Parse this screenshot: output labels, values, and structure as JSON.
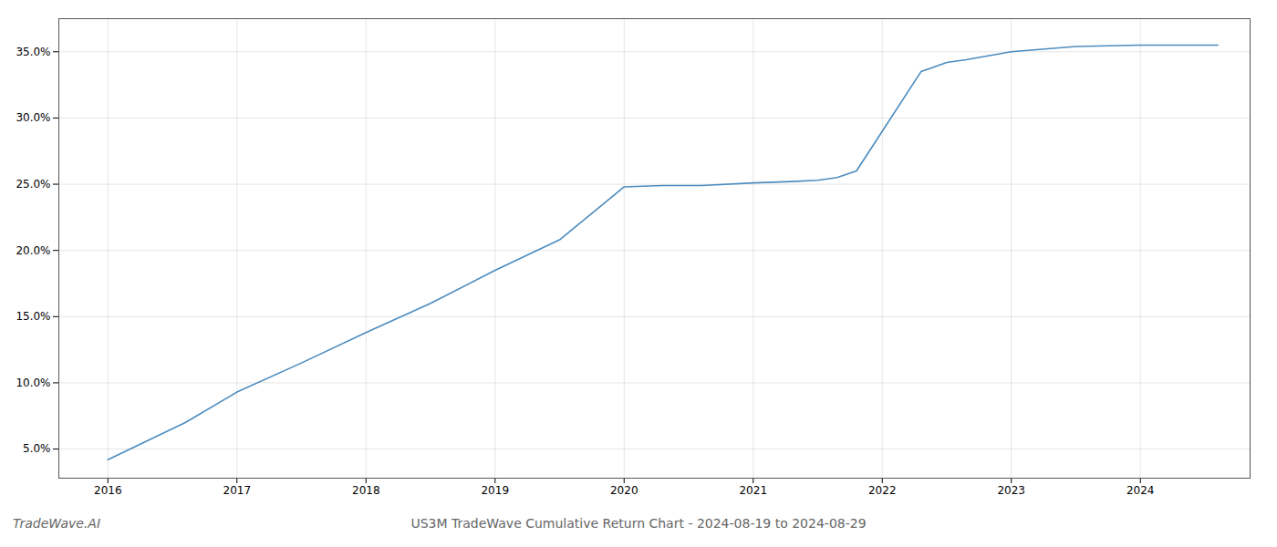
{
  "chart_data": {
    "type": "line",
    "title": "US3M TradeWave Cumulative Return Chart - 2024-08-19 to 2024-08-29",
    "annotations": [
      "TradeWave.AI"
    ],
    "x": [
      2016.0,
      2016.6,
      2017.0,
      2017.5,
      2018.0,
      2018.5,
      2019.0,
      2019.5,
      2019.9,
      2020.0,
      2020.3,
      2020.6,
      2021.0,
      2021.3,
      2021.5,
      2021.65,
      2021.8,
      2022.0,
      2022.3,
      2022.5,
      2022.65,
      2023.0,
      2023.5,
      2024.0,
      2024.6
    ],
    "values": [
      0.042,
      0.07,
      0.093,
      0.115,
      0.138,
      0.16,
      0.185,
      0.208,
      0.24,
      0.248,
      0.249,
      0.249,
      0.251,
      0.252,
      0.253,
      0.255,
      0.26,
      0.29,
      0.335,
      0.342,
      0.344,
      0.35,
      0.354,
      0.355,
      0.355
    ],
    "color": "#4c8cbf",
    "xlim": [
      2015.62,
      2024.85
    ],
    "xticks": [
      2016,
      2017,
      2018,
      2019,
      2020,
      2021,
      2022,
      2023,
      2024
    ],
    "ylim": [
      0.028,
      0.375
    ],
    "yticks": [
      {
        "value": 0.05,
        "label": "5.0%"
      },
      {
        "value": 0.1,
        "label": "10.0%"
      },
      {
        "value": 0.15,
        "label": "15.0%"
      },
      {
        "value": 0.2,
        "label": "20.0%"
      },
      {
        "value": 0.25,
        "label": "25.0%"
      },
      {
        "value": 0.3,
        "label": "30.0%"
      },
      {
        "value": 0.35,
        "label": "35.0%"
      }
    ],
    "grid": true
  }
}
